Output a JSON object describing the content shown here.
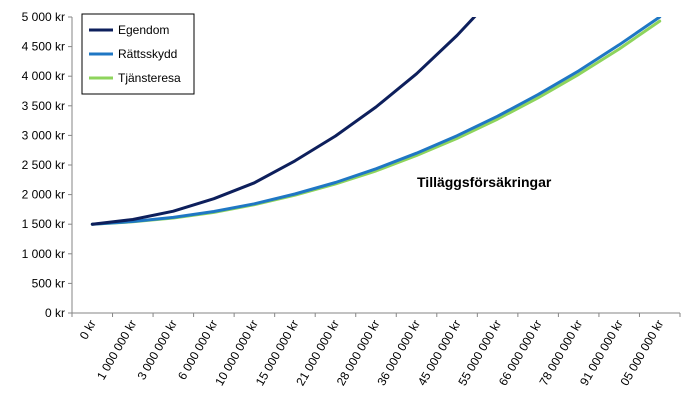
{
  "chart_data": {
    "type": "line",
    "title": "",
    "xlabel": "",
    "ylabel": "",
    "ylim": [
      0,
      5000
    ],
    "yticks": [
      {
        "value": 0,
        "label": "0 kr"
      },
      {
        "value": 500,
        "label": "500 kr"
      },
      {
        "value": 1000,
        "label": "1 000 kr"
      },
      {
        "value": 1500,
        "label": "1 500 kr"
      },
      {
        "value": 2000,
        "label": "2 000 kr"
      },
      {
        "value": 2500,
        "label": "2 500 kr"
      },
      {
        "value": 3000,
        "label": "3 000 kr"
      },
      {
        "value": 3500,
        "label": "3 500 kr"
      },
      {
        "value": 4000,
        "label": "4 000 kr"
      },
      {
        "value": 4500,
        "label": "4 500 kr"
      },
      {
        "value": 5000,
        "label": "5 000 kr"
      }
    ],
    "categories": [
      "0 kr",
      "1 000 000 kr",
      "3 000 000 kr",
      "6 000 000 kr",
      "10 000 000 kr",
      "15 000 000 kr",
      "21 000 000 kr",
      "28 000 000 kr",
      "36 000 000 kr",
      "45 000 000 kr",
      "55 000 000 kr",
      "66 000 000 kr",
      "78 000 000 kr",
      "91 000 000 kr",
      "05 000 000 kr"
    ],
    "series": [
      {
        "name": "Egendom",
        "color": "#0d1f5c",
        "values": [
          1500,
          1580,
          1720,
          1930,
          2200,
          2570,
          2990,
          3480,
          4040,
          4690,
          5420,
          null,
          null,
          null,
          null
        ]
      },
      {
        "name": "Rättsskydd",
        "color": "#1f77c4",
        "values": [
          1500,
          1545,
          1615,
          1715,
          1845,
          2010,
          2205,
          2435,
          2700,
          2995,
          3325,
          3690,
          4090,
          4530,
          5000
        ]
      },
      {
        "name": "Tjänsteresa",
        "color": "#8ed45c",
        "values": [
          1500,
          1540,
          1605,
          1700,
          1830,
          1990,
          2180,
          2400,
          2660,
          2950,
          3275,
          3635,
          4030,
          4460,
          4930
        ]
      }
    ],
    "annotations": [
      "Tilläggsförsäkringar"
    ],
    "grid": false,
    "legend_position": "top-left"
  }
}
